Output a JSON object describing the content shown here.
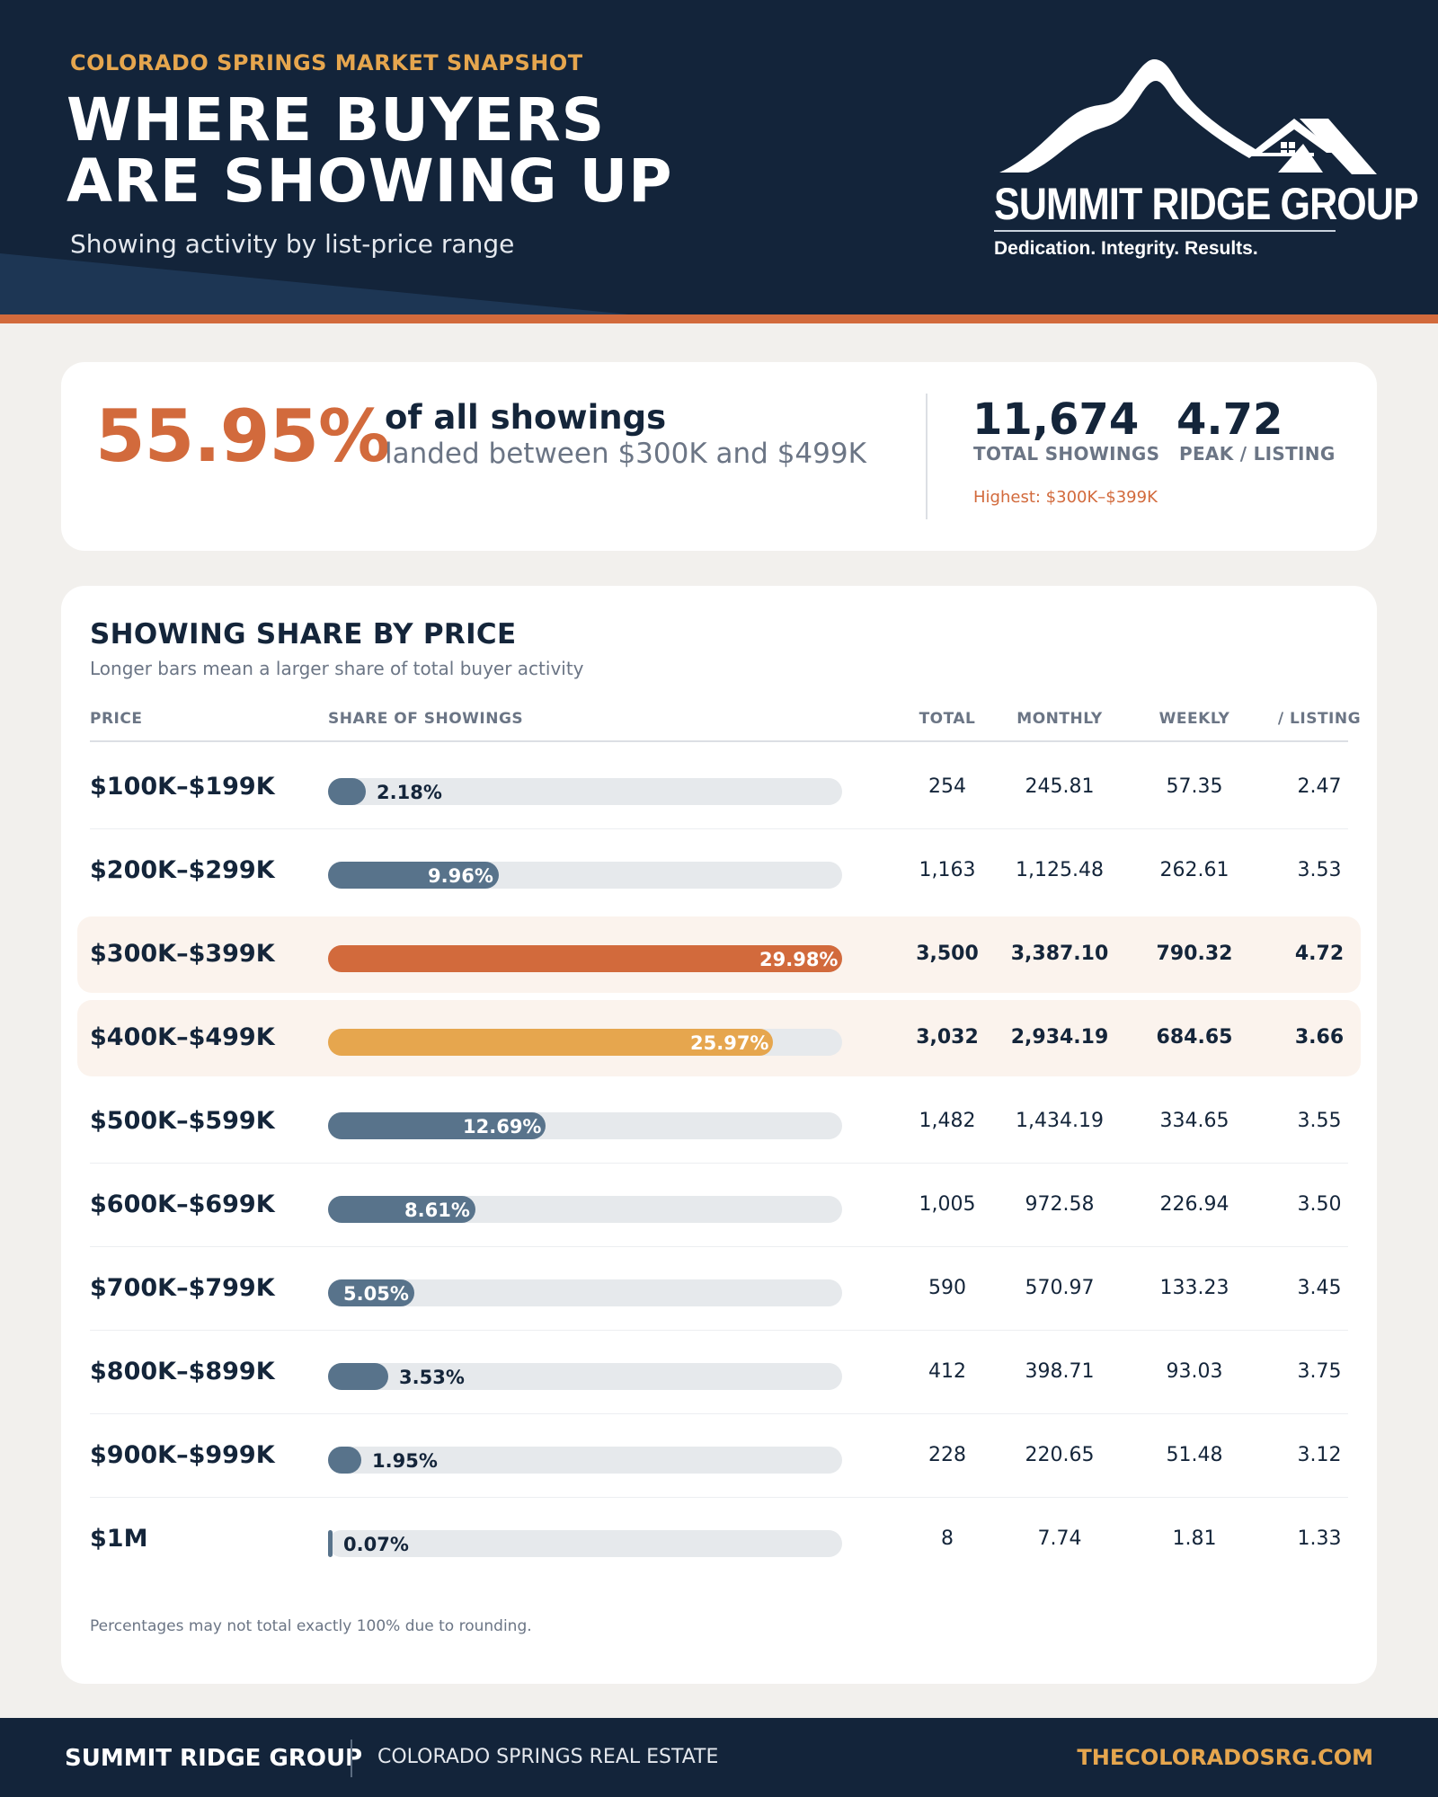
{
  "header": {
    "eyebrow": "COLORADO SPRINGS MARKET SNAPSHOT",
    "title_line1": "WHERE BUYERS",
    "title_line2": "ARE SHOWING UP",
    "subtitle": "Showing activity by list-price range"
  },
  "logo": {
    "name": "SUMMIT RIDGE GROUP",
    "tagline": "Dedication. Integrity. Results.",
    "icon": "mountain-house-icon"
  },
  "kpi": {
    "big_pct": "55.95%",
    "line1": "of all showings",
    "line2": "landed between $300K and $499K",
    "total_value": "11,674",
    "total_label": "TOTAL SHOWINGS",
    "peak_value": "4.72",
    "peak_label": "PEAK / LISTING",
    "note": "Highest: $300K–$399K"
  },
  "colors": {
    "navy": "#13243a",
    "orange": "#d26a3c",
    "gold": "#e6a64e",
    "slate": "#58738b",
    "track": "#e6e9ec"
  },
  "chart_data": {
    "type": "bar",
    "title": "SHOWING SHARE BY PRICE",
    "subtitle": "Longer bars mean a larger share of total buyer activity",
    "columns": [
      "PRICE",
      "SHARE OF SHOWINGS",
      "TOTAL",
      "MONTHLY",
      "WEEKLY",
      "/ LISTING"
    ],
    "xlim": [
      0,
      29.98
    ],
    "rows": [
      {
        "price": "$100K–$199K",
        "share": 2.18,
        "share_label": "2.18%",
        "total": "254",
        "monthly": "245.81",
        "weekly": "57.35",
        "per_listing": "2.47",
        "highlight": "",
        "color": "#58738b"
      },
      {
        "price": "$200K–$299K",
        "share": 9.96,
        "share_label": "9.96%",
        "total": "1,163",
        "monthly": "1,125.48",
        "weekly": "262.61",
        "per_listing": "3.53",
        "highlight": "",
        "color": "#58738b"
      },
      {
        "price": "$300K–$399K",
        "share": 29.98,
        "share_label": "29.98%",
        "total": "3,500",
        "monthly": "3,387.10",
        "weekly": "790.32",
        "per_listing": "4.72",
        "highlight": "yes",
        "color": "#d26a3c"
      },
      {
        "price": "$400K–$499K",
        "share": 25.97,
        "share_label": "25.97%",
        "total": "3,032",
        "monthly": "2,934.19",
        "weekly": "684.65",
        "per_listing": "3.66",
        "highlight": "yes",
        "color": "#e6a64e"
      },
      {
        "price": "$500K–$599K",
        "share": 12.69,
        "share_label": "12.69%",
        "total": "1,482",
        "monthly": "1,434.19",
        "weekly": "334.65",
        "per_listing": "3.55",
        "highlight": "",
        "color": "#58738b"
      },
      {
        "price": "$600K–$699K",
        "share": 8.61,
        "share_label": "8.61%",
        "total": "1,005",
        "monthly": "972.58",
        "weekly": "226.94",
        "per_listing": "3.50",
        "highlight": "",
        "color": "#58738b"
      },
      {
        "price": "$700K–$799K",
        "share": 5.05,
        "share_label": "5.05%",
        "total": "590",
        "monthly": "570.97",
        "weekly": "133.23",
        "per_listing": "3.45",
        "highlight": "",
        "color": "#58738b"
      },
      {
        "price": "$800K–$899K",
        "share": 3.53,
        "share_label": "3.53%",
        "total": "412",
        "monthly": "398.71",
        "weekly": "93.03",
        "per_listing": "3.75",
        "highlight": "",
        "color": "#58738b"
      },
      {
        "price": "$900K–$999K",
        "share": 1.95,
        "share_label": "1.95%",
        "total": "228",
        "monthly": "220.65",
        "weekly": "51.48",
        "per_listing": "3.12",
        "highlight": "",
        "color": "#58738b"
      },
      {
        "price": "$1M",
        "share": 0.07,
        "share_label": "0.07%",
        "total": "8",
        "monthly": "7.74",
        "weekly": "1.81",
        "per_listing": "1.33",
        "highlight": "",
        "color": "#58738b"
      }
    ],
    "footnote": "Percentages may not total exactly 100% due to rounding."
  },
  "footer": {
    "brand": "SUMMIT RIDGE GROUP",
    "subtitle": "COLORADO SPRINGS REAL ESTATE",
    "url": "THECOLORADOSRG.COM"
  }
}
